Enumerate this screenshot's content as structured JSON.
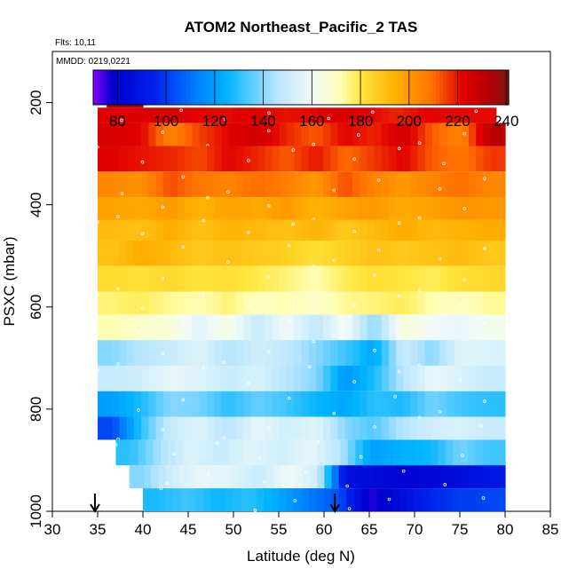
{
  "chart_data": {
    "type": "heatmap",
    "title": "ATOM2 Northeast_Pacific_2 TAS",
    "subtitle_flights": "Flts: 10,11",
    "subtitle_dates": "MMDD: 0219,0221",
    "xlabel": "Latitude (deg N)",
    "ylabel": "PSXC (mbar)",
    "xlim": [
      30,
      85
    ],
    "ylim": [
      1000,
      100
    ],
    "y_reversed": true,
    "x_ticks": [
      30,
      35,
      40,
      45,
      50,
      55,
      60,
      65,
      70,
      75,
      80,
      85
    ],
    "y_ticks": [
      200,
      400,
      600,
      800,
      1000
    ],
    "colorbar": {
      "range": [
        70,
        241
      ],
      "ticks": [
        80,
        100,
        120,
        140,
        160,
        180,
        200,
        220,
        240
      ]
    },
    "arrows_at_latitude": [
      34.7,
      61.2
    ],
    "layers": [
      {
        "p": [
          170,
          210
        ],
        "lat": [
          36,
          40
        ],
        "values": [
          235,
          235
        ]
      },
      {
        "p": [
          210,
          240
        ],
        "lat": [
          35,
          79
        ],
        "values": [
          222,
          223,
          224,
          222,
          221,
          223,
          220,
          221,
          224,
          222,
          218,
          222,
          221,
          221
        ]
      },
      {
        "p": [
          240,
          285
        ],
        "lat": [
          35,
          80
        ],
        "values": [
          224,
          222,
          205,
          215,
          222,
          226,
          218,
          212,
          222,
          218,
          226,
          212,
          205,
          232
        ]
      },
      {
        "p": [
          285,
          335
        ],
        "lat": [
          35,
          80
        ],
        "values": [
          222,
          220,
          218,
          214,
          222,
          218,
          212,
          220,
          210,
          216,
          222,
          212,
          208,
          216
        ]
      },
      {
        "p": [
          335,
          385
        ],
        "lat": [
          35,
          80
        ],
        "values": [
          204,
          202,
          214,
          208,
          205,
          210,
          206,
          200,
          214,
          205,
          200,
          205,
          210,
          204
        ]
      },
      {
        "p": [
          385,
          430
        ],
        "lat": [
          35,
          80
        ],
        "values": [
          198,
          196,
          200,
          194,
          198,
          196,
          200,
          194,
          198,
          200,
          196,
          198,
          202,
          200
        ]
      },
      {
        "p": [
          430,
          470
        ],
        "lat": [
          35,
          80
        ],
        "values": [
          192,
          190,
          196,
          190,
          194,
          192,
          190,
          194,
          188,
          192,
          196,
          192,
          194,
          196
        ]
      },
      {
        "p": [
          470,
          520
        ],
        "lat": [
          35,
          80
        ],
        "values": [
          190,
          196,
          192,
          188,
          190,
          188,
          186,
          182,
          186,
          190,
          188,
          190,
          192,
          188
        ]
      },
      {
        "p": [
          520,
          570
        ],
        "lat": [
          35,
          80
        ],
        "values": [
          183,
          181,
          184,
          180,
          182,
          179,
          176,
          172,
          178,
          182,
          180,
          178,
          182,
          184
        ]
      },
      {
        "p": [
          570,
          615
        ],
        "lat": [
          35,
          80
        ],
        "values": [
          176,
          178,
          174,
          172,
          176,
          170,
          172,
          168,
          174,
          176,
          178,
          172,
          170,
          174
        ]
      },
      {
        "p": [
          615,
          665
        ],
        "lat": [
          35,
          80
        ],
        "values": [
          172,
          168,
          166,
          156,
          164,
          150,
          160,
          148,
          162,
          140,
          166,
          160,
          158,
          162
        ]
      },
      {
        "p": [
          665,
          715
        ],
        "lat": [
          35,
          80
        ],
        "values": [
          140,
          146,
          150,
          155,
          146,
          152,
          148,
          140,
          132,
          122,
          150,
          140,
          156,
          154
        ]
      },
      {
        "p": [
          715,
          765
        ],
        "lat": [
          35,
          80
        ],
        "values": [
          150,
          152,
          158,
          155,
          150,
          154,
          146,
          140,
          118,
          128,
          146,
          158,
          154,
          150
        ]
      },
      {
        "p": [
          765,
          815
        ],
        "lat": [
          35,
          80
        ],
        "values": [
          120,
          128,
          140,
          138,
          130,
          136,
          132,
          126,
          122,
          130,
          128,
          138,
          132,
          130
        ]
      },
      {
        "p": [
          815,
          860
        ],
        "lat": [
          35,
          80
        ],
        "values": [
          102,
          130,
          150,
          155,
          146,
          158,
          152,
          156,
          140,
          134,
          146,
          152,
          154,
          150
        ]
      },
      {
        "p": [
          860,
          910
        ],
        "lat": [
          37,
          80
        ],
        "values": [
          130,
          144,
          155,
          150,
          156,
          152,
          158,
          146,
          120,
          124,
          126,
          138,
          132
        ]
      },
      {
        "p": [
          910,
          955
        ],
        "lat": [
          38.5,
          80
        ],
        "values": [
          140,
          152,
          158,
          156,
          150,
          160,
          152,
          86,
          84,
          80,
          82,
          86,
          90
        ]
      },
      {
        "p": [
          955,
          1000
        ],
        "lat": [
          40,
          80
        ],
        "values": [
          128,
          132,
          126,
          130,
          122,
          112,
          104,
          75,
          84,
          96,
          100,
          102
        ]
      }
    ]
  }
}
